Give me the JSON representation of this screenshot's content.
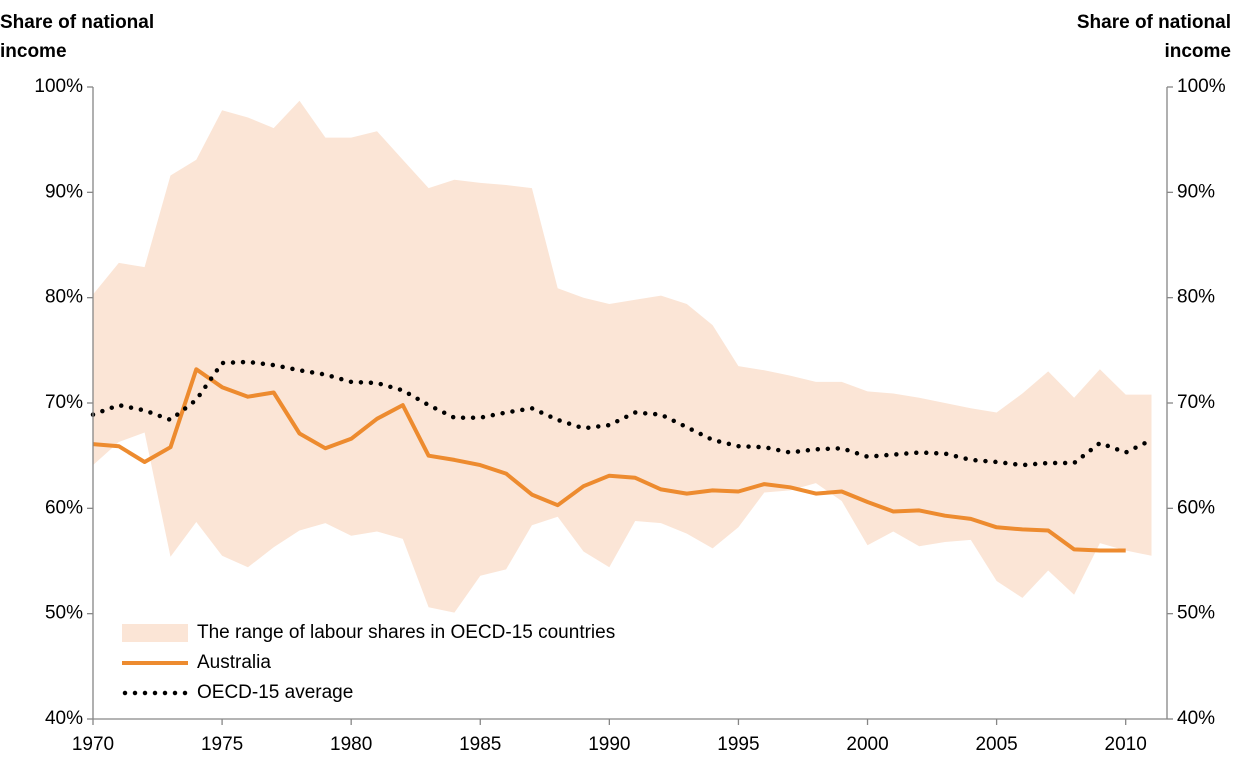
{
  "chart_data": {
    "type": "line",
    "y_label": "Share of national income",
    "y2_label": "Share of national income",
    "x": [
      1970,
      1971,
      1972,
      1973,
      1974,
      1975,
      1976,
      1977,
      1978,
      1979,
      1980,
      1981,
      1982,
      1983,
      1984,
      1985,
      1986,
      1987,
      1988,
      1989,
      1990,
      1991,
      1992,
      1993,
      1994,
      1995,
      1996,
      1997,
      1998,
      1999,
      2000,
      2001,
      2002,
      2003,
      2004,
      2005,
      2006,
      2007,
      2008,
      2009,
      2010,
      2011
    ],
    "xlim": [
      1970,
      2011.6
    ],
    "xticks": [
      1970,
      1975,
      1980,
      1985,
      1990,
      1995,
      2000,
      2005,
      2010
    ],
    "ylim": [
      40,
      100
    ],
    "yticks": [
      {
        "value": 40,
        "label": "40%"
      },
      {
        "value": 50,
        "label": "50%"
      },
      {
        "value": 60,
        "label": "60%"
      },
      {
        "value": 70,
        "label": "70%"
      },
      {
        "value": 80,
        "label": "80%"
      },
      {
        "value": 90,
        "label": "90%"
      },
      {
        "value": 100,
        "label": "100%"
      }
    ],
    "y2lim": [
      40,
      100
    ],
    "y2ticks": [
      {
        "value": 40,
        "label": "40%"
      },
      {
        "value": 50,
        "label": "50%"
      },
      {
        "value": 60,
        "label": "60%"
      },
      {
        "value": 70,
        "label": "70%"
      },
      {
        "value": 80,
        "label": "80%"
      },
      {
        "value": 90,
        "label": "90%"
      },
      {
        "value": 100,
        "label": "100%"
      }
    ],
    "legend": "bottom-left",
    "series": [
      {
        "name": "The range of labour shares in OECD-15 countries",
        "type": "range",
        "color": "#fbe5d6",
        "high": [
          80.3,
          83.3,
          82.9,
          91.6,
          93.1,
          97.8,
          97.1,
          96.1,
          98.7,
          95.2,
          95.2,
          95.8,
          93.1,
          90.4,
          91.2,
          90.9,
          90.7,
          90.4,
          80.9,
          80.0,
          79.4,
          79.8,
          80.2,
          79.4,
          77.4,
          73.5,
          73.1,
          72.6,
          72.0,
          72.0,
          71.1,
          70.9,
          70.5,
          70.0,
          69.5,
          69.1,
          70.9,
          73.0,
          70.5,
          73.2,
          70.8,
          70.8
        ],
        "low": [
          64.1,
          66.3,
          67.2,
          55.4,
          58.7,
          55.5,
          54.4,
          56.3,
          57.9,
          58.6,
          57.4,
          57.8,
          57.1,
          50.6,
          50.1,
          53.6,
          54.2,
          58.4,
          59.2,
          55.9,
          54.4,
          58.8,
          58.6,
          57.6,
          56.2,
          58.2,
          61.5,
          61.7,
          62.4,
          60.7,
          56.5,
          57.8,
          56.4,
          56.8,
          57.0,
          53.1,
          51.5,
          54.1,
          51.8,
          56.7,
          56.0,
          55.5
        ]
      },
      {
        "name": "Australia",
        "type": "line",
        "color": "#ed8b2f",
        "values": [
          66.1,
          65.9,
          64.4,
          65.8,
          73.2,
          71.5,
          70.6,
          71.0,
          67.1,
          65.7,
          66.6,
          68.5,
          69.8,
          65.0,
          64.6,
          64.1,
          63.3,
          61.3,
          60.3,
          62.1,
          63.1,
          62.9,
          61.8,
          61.4,
          61.7,
          61.6,
          62.3,
          62.0,
          61.4,
          61.6,
          60.6,
          59.7,
          59.8,
          59.3,
          59.0,
          58.2,
          58.0,
          57.9,
          56.1,
          56.0,
          56.0,
          null
        ]
      },
      {
        "name": "OECD-15 average",
        "type": "dotted",
        "color": "#000000",
        "values": [
          68.9,
          69.8,
          69.3,
          68.4,
          70.3,
          73.8,
          73.9,
          73.6,
          73.1,
          72.7,
          72.0,
          71.9,
          71.2,
          69.8,
          68.6,
          68.6,
          69.1,
          69.5,
          68.4,
          67.6,
          67.9,
          69.1,
          68.9,
          67.7,
          66.5,
          65.9,
          65.8,
          65.3,
          65.6,
          65.7,
          64.9,
          65.1,
          65.3,
          65.2,
          64.6,
          64.4,
          64.1,
          64.3,
          64.3,
          66.2,
          65.3,
          66.5
        ]
      }
    ]
  }
}
